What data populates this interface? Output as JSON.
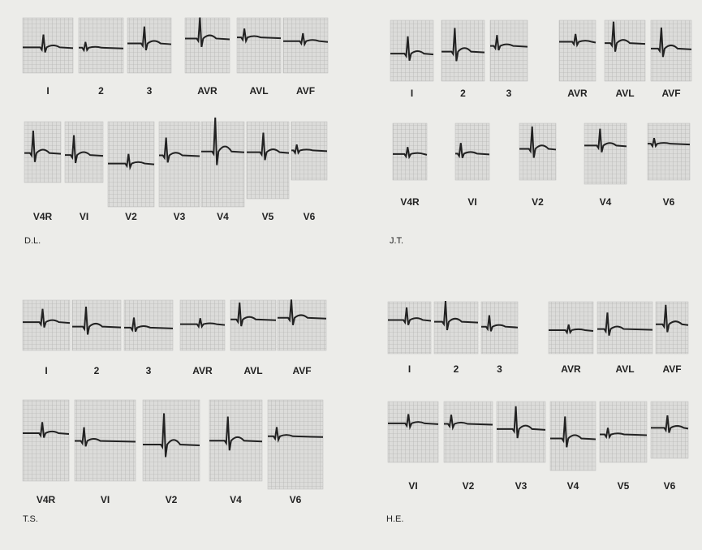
{
  "panels": [
    {
      "patient": "D.L.",
      "limb_leads": [
        "I",
        "2",
        "3",
        "AVR",
        "AVL",
        "AVF"
      ],
      "chest_leads": [
        "V4R",
        "VI",
        "V2",
        "V3",
        "V4",
        "V5",
        "V6"
      ]
    },
    {
      "patient": "J.T.",
      "limb_leads": [
        "I",
        "2",
        "3",
        "AVR",
        "AVL",
        "AVF"
      ],
      "chest_leads": [
        "V4R",
        "VI",
        "V2",
        "V4",
        "V6"
      ]
    },
    {
      "patient": "T.S.",
      "limb_leads": [
        "I",
        "2",
        "3",
        "AVR",
        "AVL",
        "AVF"
      ],
      "chest_leads": [
        "V4R",
        "VI",
        "V2",
        "V4",
        "V6"
      ]
    },
    {
      "patient": "H.E.",
      "limb_leads": [
        "I",
        "2",
        "3",
        "AVR",
        "AVL",
        "AVF"
      ],
      "chest_leads": [
        "VI",
        "V2",
        "V3",
        "V4",
        "V5",
        "V6"
      ]
    }
  ]
}
